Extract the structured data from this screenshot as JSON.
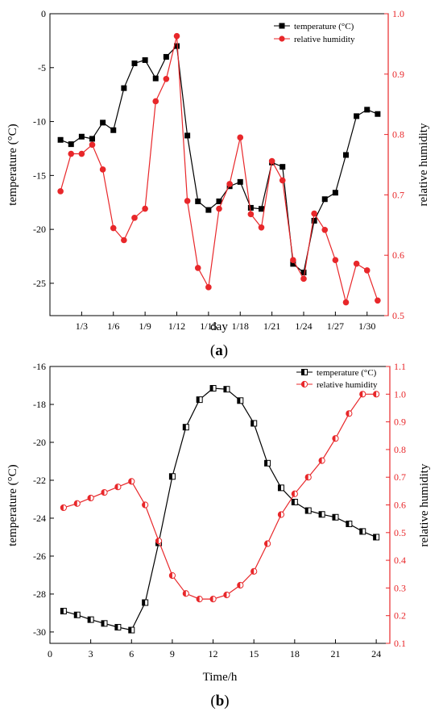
{
  "figure": {
    "panels": [
      {
        "id": "a",
        "caption_letter": "a",
        "caption_open": "(",
        "caption_close": ")"
      },
      {
        "id": "b",
        "caption_letter": "b",
        "caption_open": "(",
        "caption_close": ")"
      }
    ]
  },
  "colors": {
    "temperature": "#000000",
    "humidity": "#e8272a",
    "axis_right": "#e8272a"
  },
  "chart_data": [
    {
      "type": "line",
      "panel": "a",
      "xlabel": "day",
      "ylabel": "temperature (°C)",
      "y2label": "relative humidity",
      "xlim": [
        0,
        32
      ],
      "ylim": [
        -28,
        0
      ],
      "y2lim": [
        0.5,
        1.0
      ],
      "xticks": [
        3,
        6,
        9,
        12,
        15,
        18,
        21,
        24,
        27,
        30
      ],
      "xticklabels": [
        "1/3",
        "1/6",
        "1/9",
        "1/12",
        "1/15",
        "1/18",
        "1/21",
        "1/24",
        "1/27",
        "1/30"
      ],
      "yticks": [
        0,
        -5,
        -10,
        -15,
        -20,
        -25
      ],
      "y2ticks": [
        0.5,
        0.6,
        0.7,
        0.8,
        0.9,
        1.0
      ],
      "legend_position": "top-right",
      "x": [
        1,
        2,
        3,
        4,
        5,
        6,
        7,
        8,
        9,
        10,
        11,
        12,
        13,
        14,
        15,
        16,
        17,
        18,
        19,
        20,
        21,
        22,
        23,
        24,
        25,
        26,
        27,
        28,
        29,
        30,
        31
      ],
      "series": [
        {
          "name": "temperature (°C)",
          "axis": "left",
          "marker": "square",
          "values": [
            -11.7,
            -12.1,
            -11.4,
            -11.6,
            -10.1,
            -10.8,
            -6.9,
            -4.6,
            -4.3,
            -6.0,
            -4.0,
            -3.0,
            -11.3,
            -17.4,
            -18.2,
            -17.4,
            -16.0,
            -15.6,
            -18.0,
            -18.1,
            -13.8,
            -14.2,
            -23.2,
            -24.0,
            -19.2,
            -17.2,
            -16.6,
            -13.1,
            -9.5,
            -8.9,
            -9.3
          ]
        },
        {
          "name": "relative humidity",
          "axis": "right",
          "marker": "circle",
          "values": [
            0.706,
            0.768,
            0.768,
            0.783,
            0.742,
            0.645,
            0.625,
            0.662,
            0.677,
            0.855,
            0.892,
            0.963,
            0.69,
            0.579,
            0.547,
            0.677,
            0.718,
            0.795,
            0.668,
            0.646,
            0.756,
            0.724,
            0.592,
            0.561,
            0.669,
            0.642,
            0.592,
            0.522,
            0.586,
            0.575,
            0.525
          ]
        }
      ]
    },
    {
      "type": "line",
      "panel": "b",
      "xlabel": "Time/h",
      "ylabel": "temperature (°C)",
      "y2label": "relative humidity",
      "xlim": [
        0,
        25
      ],
      "ylim": [
        -30.6,
        -16
      ],
      "y2lim": [
        0.1,
        1.1
      ],
      "xticks": [
        0,
        3,
        6,
        9,
        12,
        15,
        18,
        21,
        24
      ],
      "xticklabels": [
        "0",
        "3",
        "6",
        "9",
        "12",
        "15",
        "18",
        "21",
        "24"
      ],
      "yticks": [
        -16,
        -18,
        -20,
        -22,
        -24,
        -26,
        -28,
        -30
      ],
      "y2ticks": [
        0.1,
        0.2,
        0.3,
        0.4,
        0.5,
        0.6,
        0.7,
        0.8,
        0.9,
        1.0,
        1.1
      ],
      "legend_position": "top-right",
      "x": [
        1,
        2,
        3,
        4,
        5,
        6,
        7,
        8,
        9,
        10,
        11,
        12,
        13,
        14,
        15,
        16,
        17,
        18,
        19,
        20,
        21,
        22,
        23,
        24
      ],
      "series": [
        {
          "name": "temperature (°C)",
          "axis": "left",
          "marker": "half-square",
          "values": [
            -28.9,
            -29.1,
            -29.35,
            -29.55,
            -29.75,
            -29.9,
            -28.45,
            -25.3,
            -21.8,
            -19.2,
            -17.75,
            -17.15,
            -17.2,
            -17.8,
            -19.0,
            -21.1,
            -22.4,
            -23.15,
            -23.6,
            -23.8,
            -23.95,
            -24.3,
            -24.7,
            -25.0
          ]
        },
        {
          "name": "relative humidity",
          "axis": "right",
          "marker": "half-circle",
          "values": [
            0.59,
            0.605,
            0.625,
            0.645,
            0.665,
            0.685,
            0.6,
            0.47,
            0.345,
            0.28,
            0.26,
            0.26,
            0.275,
            0.31,
            0.36,
            0.46,
            0.565,
            0.64,
            0.7,
            0.76,
            0.84,
            0.93,
            1.0,
            1.0
          ]
        }
      ]
    }
  ]
}
